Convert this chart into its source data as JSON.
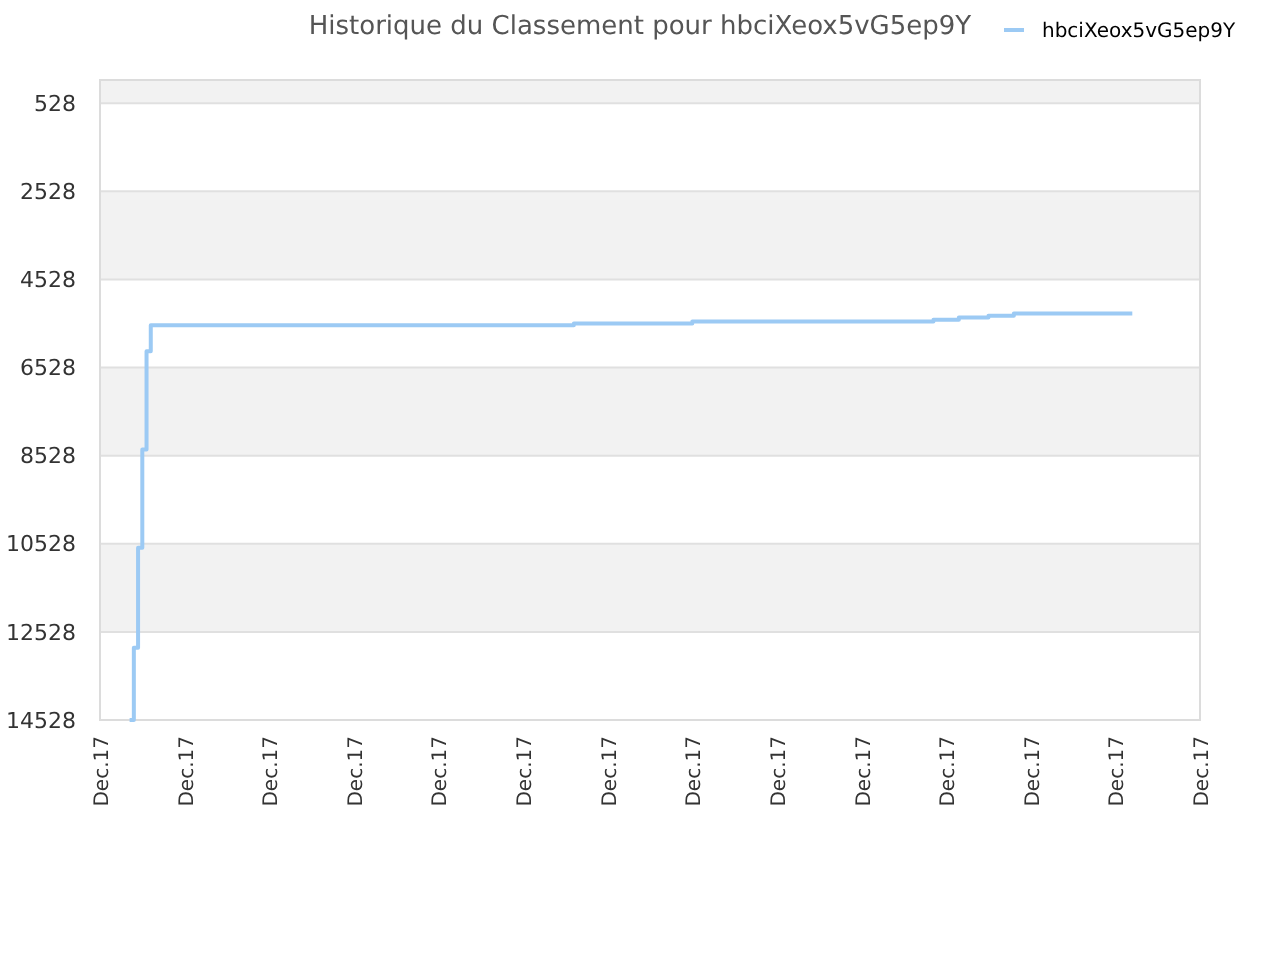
{
  "chart_data": {
    "type": "step",
    "title": "Historique du Classement pour hbciXeox5vG5ep9Y",
    "legend": "top right",
    "grid": "y",
    "ylim": [
      14528,
      0
    ],
    "categories": [
      "Dec.17",
      null,
      null,
      null,
      null,
      null,
      null,
      null,
      null,
      null,
      null,
      null,
      null,
      null,
      null,
      null,
      null,
      null,
      null,
      null,
      "Dec.17",
      null,
      null,
      null,
      null,
      null,
      null,
      null,
      null,
      null,
      null,
      null,
      null,
      null,
      null,
      null,
      null,
      null,
      null,
      null,
      "Dec.17",
      null,
      null,
      null,
      null,
      null,
      null,
      null,
      null,
      null,
      null,
      null,
      null,
      null,
      null,
      null,
      null,
      null,
      null,
      null,
      "Dec.17",
      null,
      null,
      null,
      null,
      null,
      null,
      null,
      null,
      null,
      null,
      null,
      null,
      null,
      null,
      null,
      null,
      null,
      null,
      null,
      "Dec.17",
      null,
      null,
      null,
      null,
      null,
      null,
      null,
      null,
      null,
      null,
      null,
      null,
      null,
      null,
      null,
      null,
      null,
      null,
      null,
      "Dec.17",
      null,
      null,
      null,
      null,
      null,
      null,
      null,
      null,
      null,
      null,
      null,
      null,
      null,
      null,
      null,
      null,
      null,
      null,
      null,
      "Dec.17",
      null,
      null,
      null,
      null,
      null,
      null,
      null,
      null,
      null,
      null,
      null,
      null,
      null,
      null,
      null,
      null,
      null,
      null,
      null,
      "Dec.17",
      null,
      null,
      null,
      null,
      null,
      null,
      null,
      null,
      null,
      null,
      null,
      null,
      null,
      null,
      null,
      null,
      null,
      null,
      null,
      "Dec.17",
      null,
      null,
      null,
      null,
      null,
      null,
      null,
      null,
      null,
      null,
      null,
      null,
      null,
      null,
      null,
      null,
      null,
      null,
      null,
      "Dec.17",
      null,
      null,
      null,
      null,
      null,
      null,
      null,
      null,
      null,
      null,
      null,
      null,
      null,
      null,
      null,
      null,
      null,
      null,
      null,
      "Dec.17",
      null,
      null,
      null,
      null,
      null,
      null,
      null,
      null,
      null,
      null,
      null,
      null,
      null,
      null,
      null,
      null,
      null,
      null,
      null,
      "Dec.17",
      null,
      null,
      null,
      null,
      null,
      null,
      null,
      null,
      null,
      null,
      null,
      null,
      null,
      null,
      null,
      null,
      null,
      null,
      null,
      "Dec.17",
      null,
      null,
      null,
      null,
      null,
      null,
      null,
      null,
      null,
      null,
      null,
      null,
      null,
      null,
      null,
      null,
      null,
      null,
      null,
      "Dec.17"
    ],
    "yticks": [
      528,
      2528,
      4528,
      6528,
      8528,
      10528,
      12528,
      14528
    ],
    "series": [
      {
        "name": "hbciXeox5vG5ep9Y",
        "color": "#9ccaf4",
        "values": [
          null,
          null,
          null,
          null,
          null,
          null,
          null,
          14528,
          12890,
          10620,
          8390,
          6160,
          5570,
          5570,
          5570,
          5570,
          5570,
          5570,
          5570,
          5570,
          5570,
          5570,
          5570,
          5570,
          5570,
          5570,
          5570,
          5570,
          5570,
          5570,
          5570,
          5570,
          5570,
          5570,
          5570,
          5570,
          5570,
          5570,
          5570,
          5570,
          5570,
          5570,
          5570,
          5570,
          5570,
          5570,
          5570,
          5570,
          5570,
          5570,
          5570,
          5570,
          5570,
          5570,
          5570,
          5570,
          5570,
          5570,
          5570,
          5570,
          5570,
          5570,
          5570,
          5570,
          5570,
          5570,
          5570,
          5570,
          5570,
          5570,
          5570,
          5570,
          5570,
          5570,
          5570,
          5570,
          5570,
          5570,
          5570,
          5570,
          5570,
          5570,
          5570,
          5570,
          5570,
          5570,
          5570,
          5570,
          5570,
          5570,
          5570,
          5570,
          5570,
          5570,
          5570,
          5570,
          5570,
          5570,
          5570,
          5570,
          5570,
          5570,
          5570,
          5570,
          5570,
          5570,
          5570,
          5570,
          5570,
          5570,
          5570,
          5570,
          5530,
          5530,
          5530,
          5530,
          5530,
          5530,
          5530,
          5530,
          5530,
          5530,
          5530,
          5530,
          5530,
          5530,
          5530,
          5530,
          5530,
          5530,
          5530,
          5530,
          5530,
          5530,
          5530,
          5530,
          5530,
          5530,
          5530,
          5530,
          5480,
          5480,
          5480,
          5480,
          5480,
          5480,
          5480,
          5480,
          5480,
          5480,
          5480,
          5480,
          5480,
          5480,
          5480,
          5480,
          5480,
          5480,
          5480,
          5480,
          5480,
          5480,
          5480,
          5480,
          5480,
          5480,
          5480,
          5480,
          5480,
          5480,
          5480,
          5480,
          5480,
          5480,
          5480,
          5480,
          5480,
          5480,
          5480,
          5480,
          5480,
          5480,
          5480,
          5480,
          5480,
          5480,
          5480,
          5480,
          5480,
          5480,
          5480,
          5480,
          5480,
          5480,
          5480,
          5480,
          5480,
          5440,
          5440,
          5440,
          5440,
          5440,
          5440,
          5390,
          5390,
          5390,
          5390,
          5390,
          5390,
          5390,
          5350,
          5350,
          5350,
          5350,
          5350,
          5350,
          5300,
          5300,
          5300,
          5300,
          5300,
          5300,
          5300,
          5300,
          5300,
          5300,
          5300,
          5300,
          5300,
          5300,
          5300,
          5300,
          5300,
          5300,
          5300,
          5300,
          5300,
          5300,
          5300,
          5300,
          5300,
          5300,
          5300,
          5300,
          5300,
          null,
          null,
          null,
          null,
          null,
          null,
          null,
          null,
          null,
          null,
          null,
          null,
          null,
          null,
          null,
          null
        ]
      }
    ]
  }
}
